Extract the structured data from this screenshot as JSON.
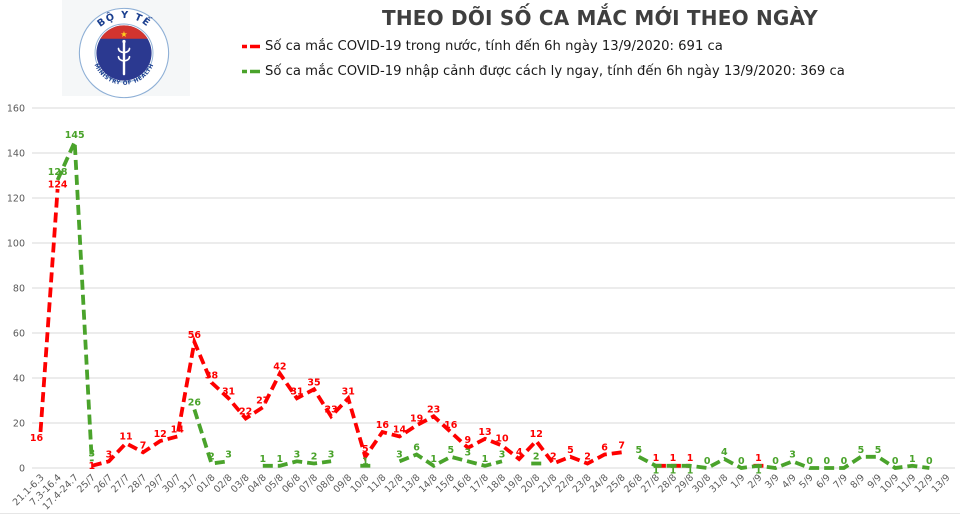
{
  "header": {
    "title": "THEO DÕI SỐ CA MẮC MỚI THEO NGÀY",
    "logo": {
      "top_text": "BỘ Y TẾ",
      "bottom_text": "MINISTRY OF HEALTH",
      "star_icon_glyph": "★",
      "colors": {
        "ring_blue": "#8fb0d6",
        "text_blue": "#1b3f8f",
        "disk_navy": "#2b3990",
        "band_red": "#d2342f",
        "star_yellow": "#ffd21f"
      }
    },
    "legend": [
      {
        "label": "Số ca mắc COVID-19 trong nước, tính đến 6h ngày 13/9/2020: 691 ca",
        "color": "#fe0000"
      },
      {
        "label": "Số ca mắc COVID-19 nhập cảnh được cách ly ngay, tính đến 6h ngày 13/9/2020: 369 ca",
        "color": "#4aa32b"
      }
    ]
  },
  "chart_data": {
    "type": "line",
    "line_style": "dashed",
    "grid": true,
    "legend_position": "top",
    "xlabel": "",
    "ylabel": "",
    "ylim": [
      0,
      160
    ],
    "yticks": [
      0,
      20,
      40,
      60,
      80,
      100,
      120,
      140,
      160
    ],
    "categories": [
      "21.1-6.3",
      "7.3-16.4",
      "17.4-24.7",
      "25/7",
      "26/7",
      "27/7",
      "28/7",
      "29/7",
      "30/7",
      "31/7",
      "01/8",
      "02/8",
      "03/8",
      "04/8",
      "05/8",
      "06/8",
      "07/8",
      "08/8",
      "09/8",
      "10/8",
      "11/8",
      "12/8",
      "13/8",
      "14/8",
      "15/8",
      "16/8",
      "17/8",
      "18/8",
      "19/8",
      "20/8",
      "21/8",
      "22/8",
      "23/8",
      "24/8",
      "25/8",
      "26/8",
      "27/8",
      "28/8",
      "29/8",
      "30/8",
      "31/8",
      "1/9",
      "2/9",
      "3/9",
      "4/9",
      "5/9",
      "6/9",
      "7/9",
      "8/9",
      "9/9",
      "10/9",
      "11/9",
      "12/9",
      "13/9"
    ],
    "series": [
      {
        "id": "domestic",
        "name": "Số ca mắc COVID-19 trong nước",
        "color": "#fe0000",
        "total": 691,
        "values": [
          16,
          124,
          null,
          1,
          3,
          11,
          7,
          12,
          14,
          56,
          38,
          31,
          22,
          27,
          42,
          31,
          35,
          23,
          31,
          5,
          16,
          14,
          19,
          23,
          16,
          9,
          13,
          10,
          4,
          12,
          2,
          5,
          2,
          6,
          7,
          null,
          1,
          1,
          1,
          null,
          null,
          null,
          1,
          null,
          null,
          null,
          null,
          null,
          null,
          null,
          null,
          null,
          null,
          null
        ]
      },
      {
        "id": "imported",
        "name": "Số ca mắc COVID-19 nhập cảnh được cách ly ngay",
        "color": "#4aa32b",
        "total": 369,
        "values": [
          null,
          128,
          145,
          3,
          null,
          null,
          null,
          null,
          null,
          26,
          2,
          3,
          null,
          1,
          1,
          3,
          2,
          3,
          null,
          1,
          null,
          3,
          6,
          1,
          5,
          3,
          1,
          3,
          null,
          2,
          null,
          null,
          null,
          null,
          null,
          5,
          1,
          1,
          1,
          0,
          4,
          0,
          1,
          0,
          3,
          0,
          0,
          0,
          5,
          5,
          0,
          1,
          0,
          null
        ]
      }
    ],
    "axis_color": "#595959",
    "gridline_color": "#d9d9d9"
  }
}
